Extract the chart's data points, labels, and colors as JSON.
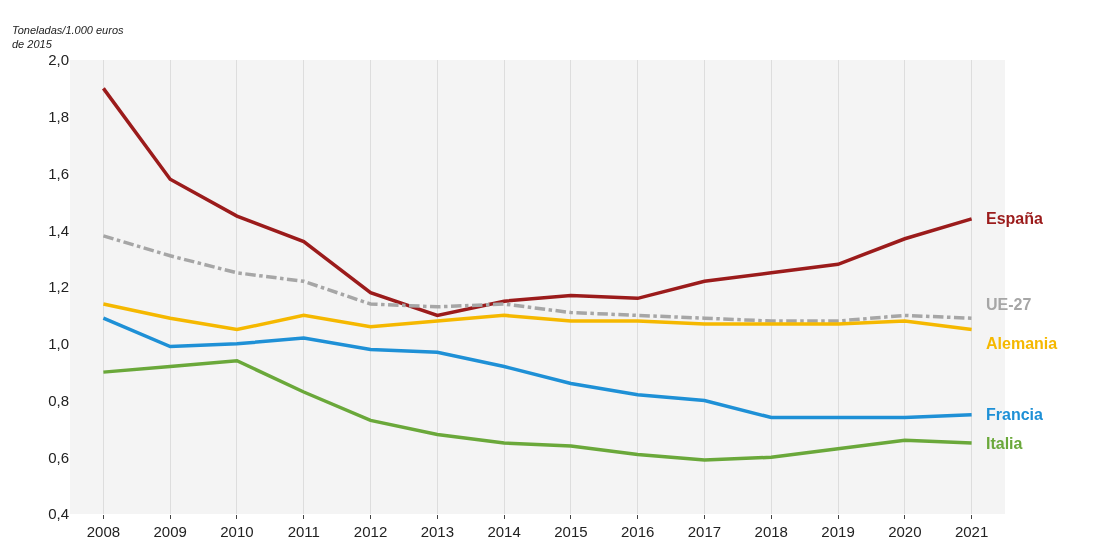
{
  "chart_data": {
    "type": "line",
    "ylabel": "Toneladas/1.000 euros de 2015",
    "categories": [
      "2008",
      "2009",
      "2010",
      "2011",
      "2012",
      "2013",
      "2014",
      "2015",
      "2016",
      "2017",
      "2018",
      "2019",
      "2020",
      "2021"
    ],
    "series": [
      {
        "name": "España",
        "color": "#9b1b1b",
        "values": [
          1.9,
          1.58,
          1.45,
          1.36,
          1.18,
          1.1,
          1.15,
          1.17,
          1.16,
          1.22,
          1.25,
          1.28,
          1.37,
          1.44
        ]
      },
      {
        "name": "UE-27",
        "color": "#a6a6a6",
        "line_style": "dashed",
        "values": [
          1.38,
          1.31,
          1.25,
          1.22,
          1.14,
          1.13,
          1.14,
          1.11,
          1.1,
          1.09,
          1.08,
          1.08,
          1.1,
          1.09
        ]
      },
      {
        "name": "Alemania",
        "color": "#f5b800",
        "values": [
          1.14,
          1.09,
          1.05,
          1.1,
          1.06,
          1.08,
          1.1,
          1.08,
          1.08,
          1.07,
          1.07,
          1.07,
          1.08,
          1.05
        ]
      },
      {
        "name": "Francia",
        "color": "#1e90d6",
        "values": [
          1.09,
          0.99,
          1.0,
          1.02,
          0.98,
          0.97,
          0.92,
          0.86,
          0.82,
          0.8,
          0.74,
          0.74,
          0.74,
          0.75
        ]
      },
      {
        "name": "Italia",
        "color": "#6aa83a",
        "values": [
          0.9,
          0.92,
          0.94,
          0.83,
          0.73,
          0.68,
          0.65,
          0.64,
          0.61,
          0.59,
          0.6,
          0.63,
          0.66,
          0.65
        ]
      }
    ],
    "ylim": [
      0.4,
      2.0
    ],
    "yticks": [
      {
        "value": 0.4,
        "label": "0,4"
      },
      {
        "value": 0.6,
        "label": "0,6"
      },
      {
        "value": 0.8,
        "label": "0,8"
      },
      {
        "value": 1.0,
        "label": "1,0"
      },
      {
        "value": 1.2,
        "label": "1,2"
      },
      {
        "value": 1.4,
        "label": "1,4"
      },
      {
        "value": 1.6,
        "label": "1,6"
      },
      {
        "value": 1.8,
        "label": "1,8"
      },
      {
        "value": 2.0,
        "label": "2,0"
      }
    ],
    "grid": "x",
    "legend": false,
    "line_style": "solid",
    "marker": "none"
  }
}
